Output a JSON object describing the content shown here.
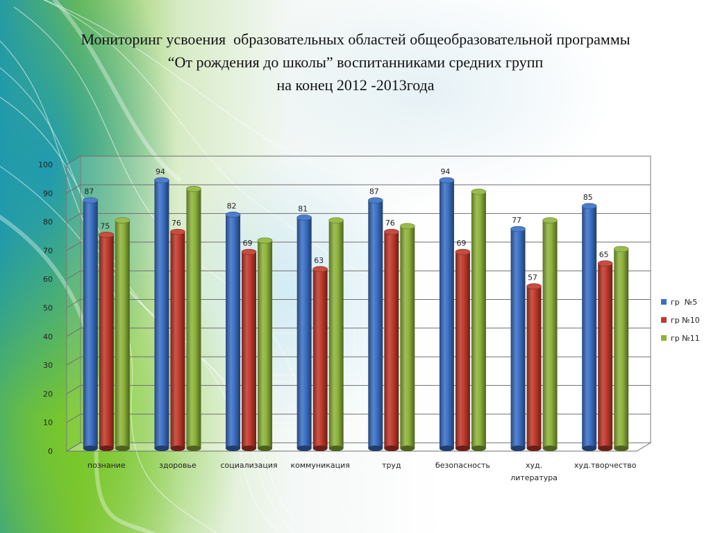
{
  "slide": {
    "title_lines": [
      "Мониторинг усвоения  образовательных областей общеобразовательной программы",
      "“От рождения до школы” воспитанниками средних групп",
      "на конец 2012 -2013года"
    ]
  },
  "chart_data": {
    "type": "bar",
    "title": "",
    "xlabel": "",
    "ylabel": "",
    "ylim": [
      0,
      100
    ],
    "yticks": [
      0,
      10,
      20,
      30,
      40,
      50,
      60,
      70,
      80,
      90,
      100
    ],
    "grid": true,
    "legend_position": "right",
    "categories": [
      [
        "познание"
      ],
      [
        "здоровье"
      ],
      [
        "социализация"
      ],
      [
        "коммуникация"
      ],
      [
        "труд"
      ],
      [
        "безопасность"
      ],
      [
        "худ.",
        "литература"
      ],
      [
        "худ.творчество"
      ]
    ],
    "series": [
      {
        "name": "гр  №5",
        "color": "#3a6fc4",
        "values": [
          87,
          94,
          82,
          81,
          87,
          94,
          77,
          85
        ],
        "labels": [
          "87",
          "94",
          "82",
          "81",
          "87",
          "94",
          "77",
          "85"
        ]
      },
      {
        "name": "гр №10",
        "color": "#c0392b",
        "values": [
          75,
          76,
          69,
          63,
          76,
          69,
          57,
          65
        ],
        "labels": [
          "75",
          "76",
          "69",
          "63",
          "76",
          "69",
          "57",
          "65"
        ]
      },
      {
        "name": "гр №11",
        "color": "#8db33a",
        "values": [
          80,
          91,
          73,
          80,
          78,
          90,
          80,
          70
        ],
        "labels": [
          "",
          "",
          "",
          "",
          "",
          "",
          "",
          ""
        ]
      }
    ]
  }
}
